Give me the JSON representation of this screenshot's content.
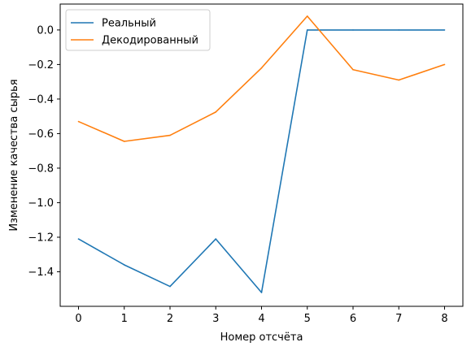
{
  "chart_data": {
    "type": "line",
    "x": [
      0,
      1,
      2,
      3,
      4,
      5,
      6,
      7,
      8
    ],
    "series": [
      {
        "name": "Реальный",
        "color": "#1f77b4",
        "values": [
          -1.21,
          -1.36,
          -1.485,
          -1.21,
          -1.52,
          0.0,
          0.0,
          0.0,
          0.0
        ]
      },
      {
        "name": "Декодированный",
        "color": "#ff7f0e",
        "values": [
          -0.53,
          -0.645,
          -0.61,
          -0.475,
          -0.22,
          0.08,
          -0.23,
          -0.29,
          -0.2
        ]
      }
    ],
    "xlabel": "Номер отсчёта",
    "ylabel": "Изменение качества сырья",
    "xlim": [
      -0.4,
      8.4
    ],
    "ylim": [
      -1.6,
      0.15
    ],
    "xticks": [
      0,
      1,
      2,
      3,
      4,
      5,
      6,
      7,
      8
    ],
    "yticks": [
      0.0,
      -0.2,
      -0.4,
      -0.6,
      -0.8,
      -1.0,
      -1.2,
      -1.4
    ],
    "ytick_labels": [
      "0.0",
      "−0.2",
      "−0.4",
      "−0.6",
      "−0.8",
      "−1.0",
      "−1.2",
      "−1.4"
    ],
    "grid": false,
    "legend": "upper-left"
  }
}
